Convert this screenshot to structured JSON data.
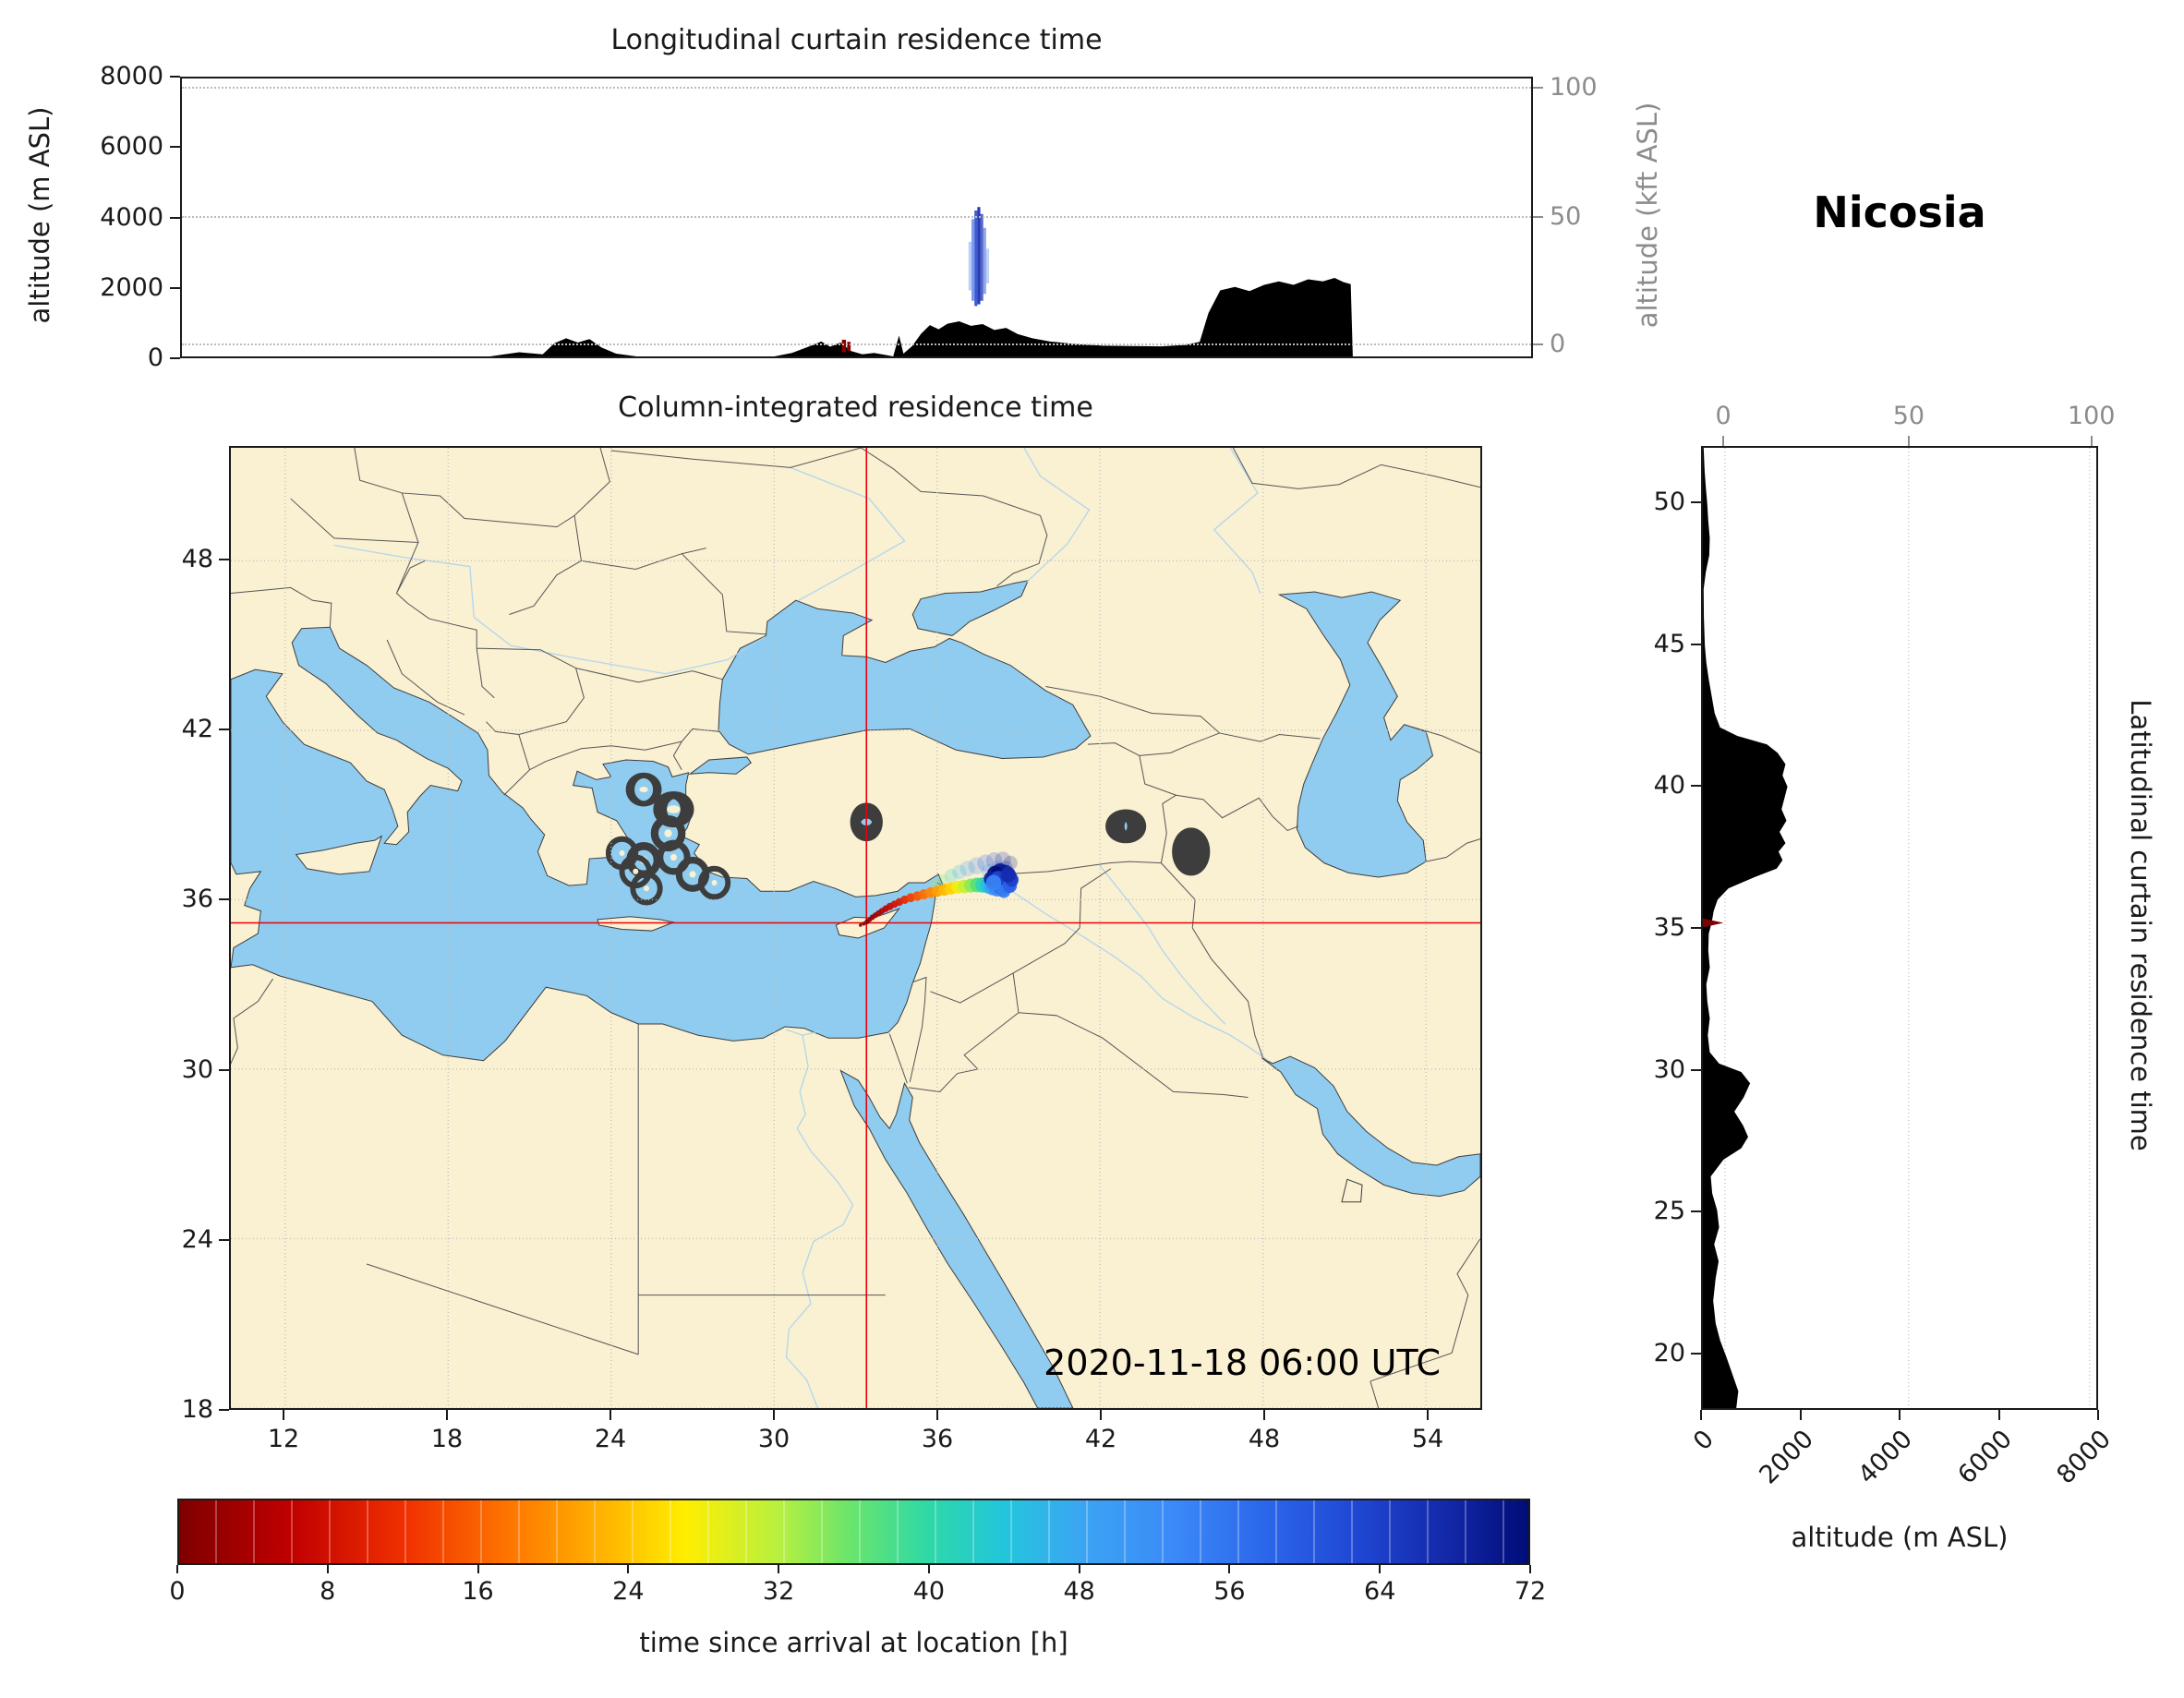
{
  "station_label": "Nicosia",
  "timestamp": "2020-11-18 06:00 UTC",
  "top_panel": {
    "title": "Longitudinal curtain residence time",
    "ylabel_left": "altitude (m ASL)",
    "ylabel_right": "altitude (kft ASL)",
    "yticks_left": [
      0,
      2000,
      4000,
      6000,
      8000
    ],
    "yticks_right": [
      {
        "v": 0,
        "f": 0.95
      },
      {
        "v": 50,
        "f": 0.497
      },
      {
        "v": 100,
        "f": 0.04
      }
    ]
  },
  "map_panel": {
    "title": "Column-integrated residence time",
    "xticks": [
      12,
      18,
      24,
      30,
      36,
      42,
      48,
      54
    ],
    "yticks": [
      18,
      24,
      30,
      36,
      42,
      48
    ],
    "lon_range": [
      10,
      56
    ],
    "lat_range": [
      18,
      52
    ],
    "crosshair": {
      "lon": 33.4,
      "lat": 35.18
    }
  },
  "right_panel": {
    "side_label": "Latitudinal curtain residence time",
    "xlabel": "altitude (m ASL)",
    "xticks": [
      0,
      2000,
      4000,
      6000,
      8000
    ],
    "xticks_top": [
      {
        "v": 0,
        "f": 0.056
      },
      {
        "v": 50,
        "f": 0.523
      },
      {
        "v": 100,
        "f": 0.983
      }
    ],
    "yticks": [
      20,
      25,
      30,
      35,
      40,
      45,
      50
    ],
    "alt_range": [
      0,
      8000
    ]
  },
  "colorbar": {
    "label": "time since arrival at location [h]",
    "ticks": [
      0,
      8,
      16,
      24,
      32,
      40,
      48,
      56,
      64,
      72
    ],
    "range": [
      0,
      72
    ]
  },
  "colors": {
    "land": "#faf0d2",
    "sea": "#8fccef",
    "terrain": "#000000",
    "crosshair": "#e8000b",
    "grid": "#bcbcbc",
    "axis_gray": "#8c8c8c"
  },
  "chart_data": {
    "type": "heatmap",
    "title": "Column-integrated residence time",
    "variable": "time since arrival at location [h]",
    "source": {
      "name": "Nicosia",
      "lon": 33.4,
      "lat": 35.18
    },
    "time_range_hours": [
      0,
      72
    ],
    "colormap_stops": [
      [
        0,
        "#7f0000"
      ],
      [
        6,
        "#c00000"
      ],
      [
        12,
        "#f03000"
      ],
      [
        18,
        "#ff7a00"
      ],
      [
        24,
        "#ffc400"
      ],
      [
        27,
        "#ffee00"
      ],
      [
        32,
        "#b8f040"
      ],
      [
        36,
        "#66e46e"
      ],
      [
        40,
        "#2ed8a8"
      ],
      [
        44,
        "#22c6dc"
      ],
      [
        48,
        "#3ba6f2"
      ],
      [
        53,
        "#3b8af8"
      ],
      [
        58,
        "#2b66ea"
      ],
      [
        63,
        "#1f46d2"
      ],
      [
        68,
        "#1226a6"
      ],
      [
        72,
        "#000d78"
      ]
    ],
    "map_plume": [
      [
        33.18,
        35.1,
        0,
        0.06
      ],
      [
        33.3,
        35.15,
        0,
        0.07
      ],
      [
        33.42,
        35.22,
        0,
        0.09
      ],
      [
        33.52,
        35.3,
        1,
        0.09
      ],
      [
        33.62,
        35.38,
        2,
        0.1
      ],
      [
        33.73,
        35.45,
        3,
        0.1
      ],
      [
        33.85,
        35.52,
        4,
        0.11
      ],
      [
        33.97,
        35.6,
        5,
        0.11
      ],
      [
        34.11,
        35.68,
        6,
        0.12
      ],
      [
        34.26,
        35.76,
        7,
        0.13
      ],
      [
        34.43,
        35.84,
        8,
        0.13
      ],
      [
        34.61,
        35.92,
        9,
        0.14
      ],
      [
        34.81,
        36.0,
        11,
        0.15
      ],
      [
        35.03,
        36.07,
        13,
        0.16
      ],
      [
        35.27,
        36.13,
        15,
        0.17
      ],
      [
        35.51,
        36.19,
        17,
        0.18
      ],
      [
        35.76,
        36.25,
        19,
        0.19
      ],
      [
        36.01,
        36.3,
        21,
        0.2
      ],
      [
        36.26,
        36.35,
        23,
        0.21
      ],
      [
        36.51,
        36.4,
        25,
        0.22
      ],
      [
        36.76,
        36.44,
        28,
        0.23
      ],
      [
        37.0,
        36.47,
        31,
        0.24
      ],
      [
        37.24,
        36.5,
        34,
        0.25
      ],
      [
        37.47,
        36.52,
        37,
        0.26
      ],
      [
        37.68,
        36.52,
        41,
        0.27
      ],
      [
        37.87,
        36.5,
        45,
        0.28
      ],
      [
        38.04,
        36.46,
        49,
        0.3
      ],
      [
        38.22,
        36.43,
        53,
        0.32
      ],
      [
        38.4,
        36.48,
        57,
        0.34
      ],
      [
        38.54,
        36.6,
        61,
        0.36
      ],
      [
        38.6,
        36.75,
        65,
        0.36
      ],
      [
        38.5,
        36.9,
        68,
        0.34
      ],
      [
        38.32,
        36.97,
        70,
        0.32
      ],
      [
        38.14,
        36.9,
        72,
        0.3
      ],
      [
        37.98,
        36.74,
        69,
        0.26
      ],
      [
        38.26,
        36.72,
        63,
        0.3
      ],
      [
        38.46,
        36.3,
        55,
        0.24
      ],
      [
        38.68,
        36.5,
        59,
        0.26
      ],
      [
        38.76,
        36.7,
        64,
        0.24
      ],
      [
        38.08,
        36.6,
        54,
        0.28
      ],
      [
        38.62,
        36.88,
        67,
        0.28
      ]
    ],
    "map_plume_haze": [
      [
        35.92,
        36.55,
        30,
        0.18
      ],
      [
        36.22,
        36.7,
        36,
        0.2
      ],
      [
        36.52,
        36.85,
        42,
        0.24
      ],
      [
        36.82,
        36.98,
        46,
        0.26
      ],
      [
        37.12,
        37.1,
        50,
        0.28
      ],
      [
        37.45,
        37.2,
        54,
        0.3
      ],
      [
        37.78,
        37.3,
        58,
        0.3
      ],
      [
        38.1,
        37.38,
        62,
        0.3
      ],
      [
        38.42,
        37.4,
        66,
        0.3
      ],
      [
        38.7,
        37.3,
        70,
        0.26
      ],
      [
        38.24,
        37.12,
        60,
        0.26
      ],
      [
        37.9,
        37.0,
        52,
        0.26
      ],
      [
        38.52,
        37.1,
        68,
        0.28
      ]
    ],
    "curtain_lon_columns": [
      [
        36.82,
        36.92,
        1900,
        3300,
        56,
        0.35
      ],
      [
        36.92,
        37.02,
        1600,
        3950,
        60,
        0.6
      ],
      [
        37.02,
        37.12,
        1450,
        4200,
        64,
        0.85
      ],
      [
        37.12,
        37.22,
        1500,
        4300,
        68,
        0.9
      ],
      [
        37.22,
        37.32,
        1600,
        4100,
        66,
        0.75
      ],
      [
        37.32,
        37.42,
        1800,
        3700,
        62,
        0.5
      ],
      [
        37.42,
        37.52,
        2100,
        3100,
        58,
        0.3
      ]
    ],
    "curtain_lon_source": [
      [
        32.5,
        32.64,
        120,
        480
      ],
      [
        32.68,
        32.8,
        160,
        420
      ]
    ],
    "lat_curtain_source_alt": 420,
    "terrain_lon_profile": [
      [
        10,
        0
      ],
      [
        20.5,
        0
      ],
      [
        21.5,
        120
      ],
      [
        22.3,
        60
      ],
      [
        22.7,
        380
      ],
      [
        23.1,
        520
      ],
      [
        23.5,
        400
      ],
      [
        23.9,
        500
      ],
      [
        24.3,
        260
      ],
      [
        24.8,
        80
      ],
      [
        25.5,
        0
      ],
      [
        30.2,
        0
      ],
      [
        30.8,
        100
      ],
      [
        31.3,
        260
      ],
      [
        31.8,
        430
      ],
      [
        32.1,
        280
      ],
      [
        32.45,
        400
      ],
      [
        32.8,
        160
      ],
      [
        33.2,
        60
      ],
      [
        33.6,
        100
      ],
      [
        34.0,
        40
      ],
      [
        34.25,
        0
      ],
      [
        34.45,
        600
      ],
      [
        34.6,
        80
      ],
      [
        34.9,
        300
      ],
      [
        35.2,
        650
      ],
      [
        35.5,
        900
      ],
      [
        35.8,
        780
      ],
      [
        36.1,
        940
      ],
      [
        36.5,
        1010
      ],
      [
        36.9,
        880
      ],
      [
        37.3,
        930
      ],
      [
        37.7,
        760
      ],
      [
        38.1,
        820
      ],
      [
        38.5,
        640
      ],
      [
        39.0,
        520
      ],
      [
        39.6,
        430
      ],
      [
        40.4,
        360
      ],
      [
        41.4,
        310
      ],
      [
        42.4,
        300
      ],
      [
        43.4,
        290
      ],
      [
        44.2,
        330
      ],
      [
        44.7,
        420
      ],
      [
        45.0,
        1250
      ],
      [
        45.4,
        1900
      ],
      [
        45.9,
        2000
      ],
      [
        46.4,
        1880
      ],
      [
        46.9,
        2060
      ],
      [
        47.4,
        2160
      ],
      [
        47.9,
        2060
      ],
      [
        48.4,
        2220
      ],
      [
        48.9,
        2160
      ],
      [
        49.3,
        2260
      ],
      [
        49.6,
        2140
      ],
      [
        49.85,
        2080
      ],
      [
        49.92,
        0
      ],
      [
        56,
        0
      ]
    ],
    "terrain_lat_profile": [
      [
        18,
        680
      ],
      [
        18.6,
        720
      ],
      [
        19.2,
        600
      ],
      [
        19.8,
        480
      ],
      [
        20.4,
        350
      ],
      [
        21,
        260
      ],
      [
        21.8,
        210
      ],
      [
        22.6,
        260
      ],
      [
        23.2,
        320
      ],
      [
        23.8,
        230
      ],
      [
        24.4,
        330
      ],
      [
        25,
        290
      ],
      [
        25.6,
        190
      ],
      [
        26.2,
        160
      ],
      [
        26.8,
        420
      ],
      [
        27.2,
        780
      ],
      [
        27.6,
        920
      ],
      [
        28,
        820
      ],
      [
        28.5,
        640
      ],
      [
        29,
        830
      ],
      [
        29.5,
        960
      ],
      [
        29.9,
        780
      ],
      [
        30.2,
        330
      ],
      [
        30.6,
        140
      ],
      [
        31.2,
        100
      ],
      [
        31.8,
        140
      ],
      [
        32.4,
        90
      ],
      [
        33,
        70
      ],
      [
        33.6,
        140
      ],
      [
        34.2,
        110
      ],
      [
        34.8,
        120
      ],
      [
        35.2,
        180
      ],
      [
        35.6,
        220
      ],
      [
        36,
        300
      ],
      [
        36.4,
        520
      ],
      [
        36.8,
        1050
      ],
      [
        37.1,
        1500
      ],
      [
        37.4,
        1620
      ],
      [
        37.7,
        1540
      ],
      [
        38,
        1680
      ],
      [
        38.4,
        1560
      ],
      [
        38.8,
        1700
      ],
      [
        39.2,
        1600
      ],
      [
        39.6,
        1660
      ],
      [
        40,
        1720
      ],
      [
        40.4,
        1620
      ],
      [
        40.8,
        1680
      ],
      [
        41.2,
        1520
      ],
      [
        41.5,
        1300
      ],
      [
        41.8,
        700
      ],
      [
        42.1,
        350
      ],
      [
        42.6,
        240
      ],
      [
        43.2,
        180
      ],
      [
        43.8,
        120
      ],
      [
        44.4,
        70
      ],
      [
        45,
        40
      ],
      [
        46,
        20
      ],
      [
        47,
        15
      ],
      [
        47.6,
        60
      ],
      [
        48.2,
        130
      ],
      [
        48.8,
        140
      ],
      [
        49.4,
        110
      ],
      [
        50,
        90
      ],
      [
        50.6,
        60
      ],
      [
        51.2,
        35
      ],
      [
        52,
        15
      ]
    ]
  }
}
